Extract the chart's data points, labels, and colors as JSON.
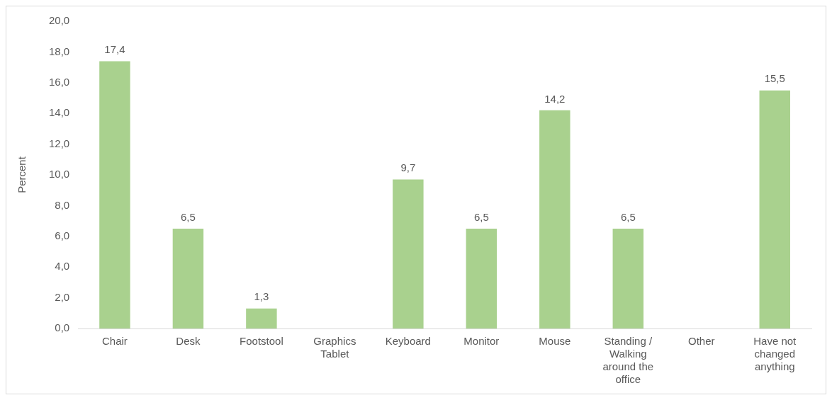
{
  "chart_data": {
    "type": "bar",
    "ylabel": "Percent",
    "categories": [
      "Chair",
      "Desk",
      "Footstool",
      "Graphics Tablet",
      "Keyboard",
      "Monitor",
      "Mouse",
      "Standing / Walking around the office",
      "Other",
      "Have not changed anything"
    ],
    "series": [
      {
        "color": "#a9d18e",
        "values": [
          17.4,
          6.5,
          1.3,
          null,
          9.7,
          6.5,
          14.2,
          6.5,
          null,
          15.5
        ],
        "value_labels": [
          "17,4",
          "6,5",
          "1,3",
          null,
          "9,7",
          "6,5",
          "14,2",
          "6,5",
          null,
          "15,5"
        ]
      }
    ],
    "ylim": [
      0,
      20
    ],
    "yticks": [
      {
        "value": 0,
        "label": "0,0"
      },
      {
        "value": 2,
        "label": "2,0"
      },
      {
        "value": 4,
        "label": "4,0"
      },
      {
        "value": 6,
        "label": "6,0"
      },
      {
        "value": 8,
        "label": "8,0"
      },
      {
        "value": 10,
        "label": "10,0"
      },
      {
        "value": 12,
        "label": "12,0"
      },
      {
        "value": 14,
        "label": "14,0"
      },
      {
        "value": 16,
        "label": "16,0"
      },
      {
        "value": 18,
        "label": "18,0"
      },
      {
        "value": 20,
        "label": "20,0"
      }
    ],
    "grid": false,
    "legend": false
  }
}
